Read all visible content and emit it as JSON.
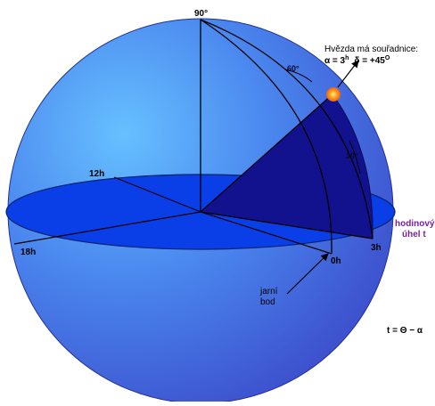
{
  "diagram": {
    "labels": {
      "pole": "90°",
      "angle_60": "60°",
      "angle_30": "30°",
      "h12": "12h",
      "h18": "18h",
      "h0": "0h",
      "h3": "3h"
    },
    "star_note": {
      "title": "Hvězda má souřadnice:",
      "alpha": "α = 3",
      "alpha_sup": "h",
      "delta": "δ = +45",
      "delta_sup": "O"
    },
    "hour_angle_label": {
      "line1": "hodinový",
      "line2": "úhel  t"
    },
    "vernal_point_label": {
      "line1": "jarní",
      "line2": "bod"
    },
    "formula": "t  = Θ − α",
    "colors": {
      "sphere_light": "#5fb4ff",
      "sphere_dark": "#3a4fd1",
      "equator_plane": "#0a3fe8",
      "wedge": "#10108f",
      "hour_angle_text": "#7a1fa2",
      "star": "#ffb21a"
    }
  }
}
